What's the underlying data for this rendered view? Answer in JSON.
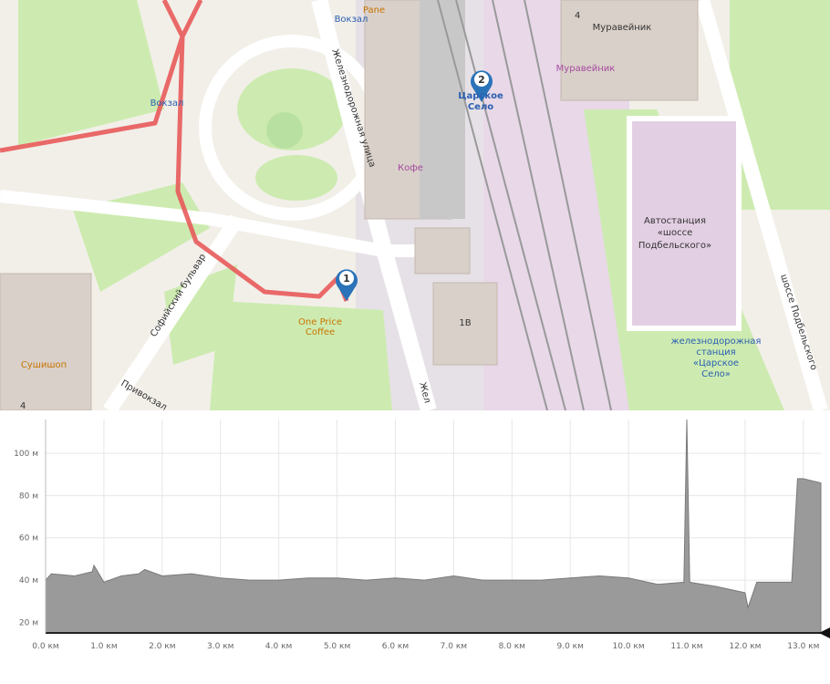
{
  "map": {
    "labels": [
      "Вокзал",
      "Pane",
      "Вокзал",
      "Железнодорожная улица",
      "Кофе",
      "Царское",
      "Село",
      "Муравейник",
      "Муравейник",
      "4",
      "One Price",
      "Coffee",
      "Софийский бульвар",
      "Привокзал",
      "Сушишоп",
      "4",
      "Автостанция",
      "«шоссе",
      "Подбельского»",
      "железнодорожная",
      "станция",
      "«Царское",
      "Село»",
      "шоссе Подбельского",
      "1В",
      "Жел"
    ],
    "markers": [
      "1",
      "2"
    ]
  },
  "chart_data": {
    "type": "area",
    "fill": "#9a9a9a",
    "stroke": "#7a7a7a",
    "x": [
      0.0,
      0.1,
      0.5,
      0.8,
      0.83,
      1.0,
      1.3,
      1.6,
      1.7,
      2.0,
      2.5,
      3.0,
      3.5,
      4.0,
      4.5,
      5.0,
      5.5,
      6.0,
      6.5,
      7.0,
      7.5,
      8.0,
      8.5,
      9.0,
      9.5,
      10.0,
      10.5,
      10.95,
      11.0,
      11.05,
      11.5,
      12.0,
      12.05,
      12.2,
      12.5,
      12.8,
      12.9,
      13.0,
      13.3
    ],
    "values": [
      40,
      43,
      42,
      44,
      47,
      39,
      42,
      43,
      45,
      42,
      43,
      41,
      40,
      40,
      41,
      41,
      40,
      41,
      40,
      42,
      40,
      40,
      40,
      41,
      42,
      41,
      38,
      39,
      116,
      39,
      37,
      34,
      27,
      39,
      39,
      39,
      88,
      88,
      86
    ],
    "xlim": [
      0,
      13.3
    ],
    "ylim": [
      15,
      116
    ],
    "xticks": [
      {
        "value": 0,
        "label": "0.0 км"
      },
      {
        "value": 1,
        "label": "1.0 км"
      },
      {
        "value": 2,
        "label": "2.0 км"
      },
      {
        "value": 3,
        "label": "3.0 км"
      },
      {
        "value": 4,
        "label": "4.0 км"
      },
      {
        "value": 5,
        "label": "5.0 км"
      },
      {
        "value": 6,
        "label": "6.0 км"
      },
      {
        "value": 7,
        "label": "7.0 км"
      },
      {
        "value": 8,
        "label": "8.0 км"
      },
      {
        "value": 9,
        "label": "9.0 км"
      },
      {
        "value": 10,
        "label": "10.0 км"
      },
      {
        "value": 11,
        "label": "11.0 км"
      },
      {
        "value": 12,
        "label": "12.0 км"
      },
      {
        "value": 13,
        "label": "13.0 км"
      }
    ],
    "yticks": [
      {
        "value": 20,
        "label": "20 м"
      },
      {
        "value": 40,
        "label": "40 м"
      },
      {
        "value": 60,
        "label": "60 м"
      },
      {
        "value": 80,
        "label": "80 м"
      },
      {
        "value": 100,
        "label": "100 м"
      }
    ],
    "grid": true
  }
}
